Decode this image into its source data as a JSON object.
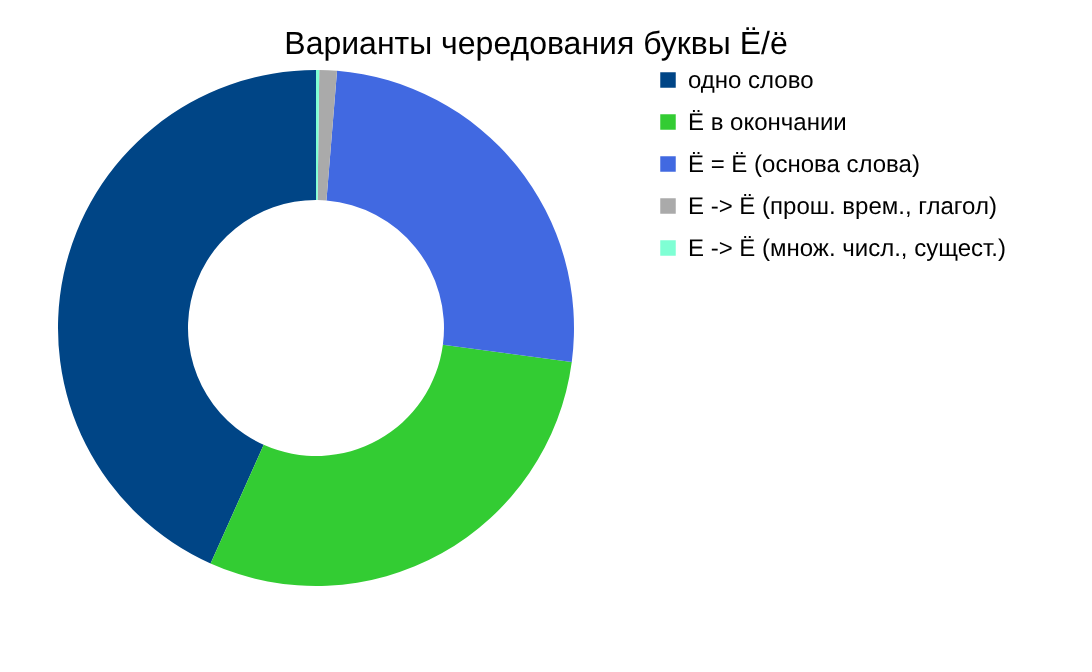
{
  "chart_data": {
    "type": "donut",
    "title": "Варианты чередования буквы Ё/ё",
    "categories": [
      "одно слово",
      "Ё в окончании",
      "  Ё = Ё (основа слова)",
      "Е -> Ё (прош. врем., глагол)",
      "Е -> Ё (множ. числ., сущест.)"
    ],
    "values": [
      43.3,
      29.6,
      25.8,
      1.1,
      0.2
    ],
    "colors": [
      "#004586",
      "#33cc33",
      "#4169e1",
      "#aaaaaa",
      "#7fffd4"
    ],
    "legend": "right"
  }
}
